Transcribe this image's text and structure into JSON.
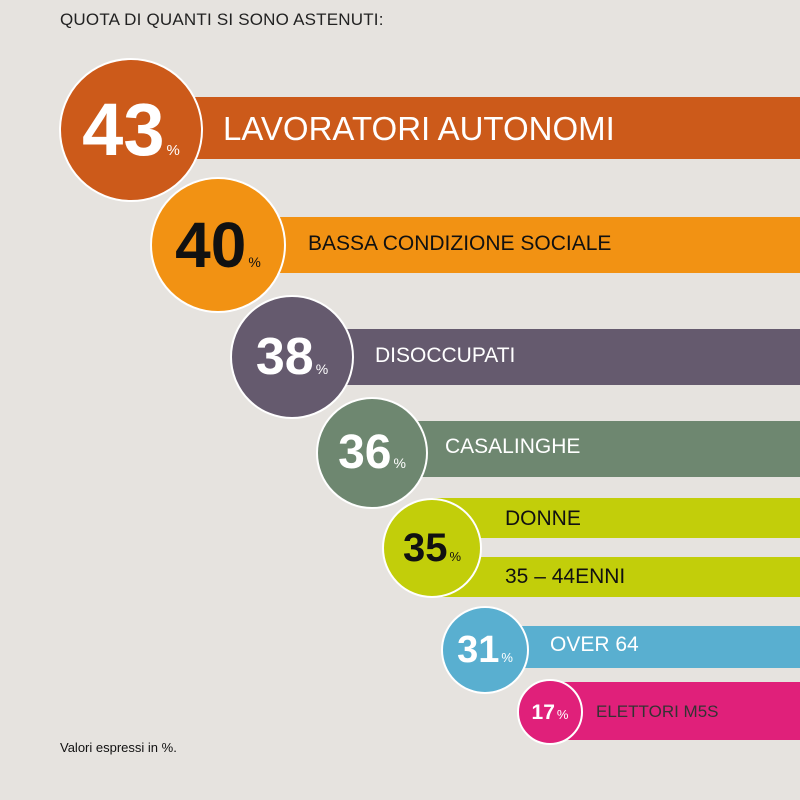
{
  "title": "QUOTA DI QUANTI SI SONO ASTENUTI:",
  "footnote": "Valori espressi in %.",
  "percent_sign": "%",
  "chart_data": {
    "type": "bar",
    "title": "QUOTA DI QUANTI SI SONO ASTENUTI:",
    "unit": "%",
    "categories": [
      "LAVORATORI AUTONOMI",
      "BASSA CONDIZIONE SOCIALE",
      "DISOCCUPATI",
      "CASALINGHE",
      "DONNE",
      "35 – 44ENNI",
      "OVER 64",
      "ELETTORI M5S"
    ],
    "values": [
      43,
      40,
      38,
      36,
      35,
      35,
      31,
      17
    ],
    "groups": [
      {
        "value": 43,
        "labels": [
          "LAVORATORI AUTONOMI"
        ],
        "color": "#cc5a1a",
        "num_color": "#ffffff",
        "label_color": "#ffffff"
      },
      {
        "value": 40,
        "labels": [
          "BASSA CONDIZIONE SOCIALE"
        ],
        "color": "#f29213",
        "num_color": "#111111",
        "label_color": "#111111"
      },
      {
        "value": 38,
        "labels": [
          "DISOCCUPATI"
        ],
        "color": "#655a6e",
        "num_color": "#ffffff",
        "label_color": "#ffffff"
      },
      {
        "value": 36,
        "labels": [
          "CASALINGHE"
        ],
        "color": "#6e8770",
        "num_color": "#ffffff",
        "label_color": "#ffffff"
      },
      {
        "value": 35,
        "labels": [
          "DONNE",
          "35 – 44ENNI"
        ],
        "color": "#c2ce0a",
        "num_color": "#111111",
        "label_color": "#111111"
      },
      {
        "value": 31,
        "labels": [
          "OVER 64"
        ],
        "color": "#59afd0",
        "num_color": "#ffffff",
        "label_color": "#ffffff"
      },
      {
        "value": 17,
        "labels": [
          "ELETTORI M5S"
        ],
        "color": "#e0207a",
        "num_color": "#ffffff",
        "label_color": "#333333"
      }
    ]
  }
}
